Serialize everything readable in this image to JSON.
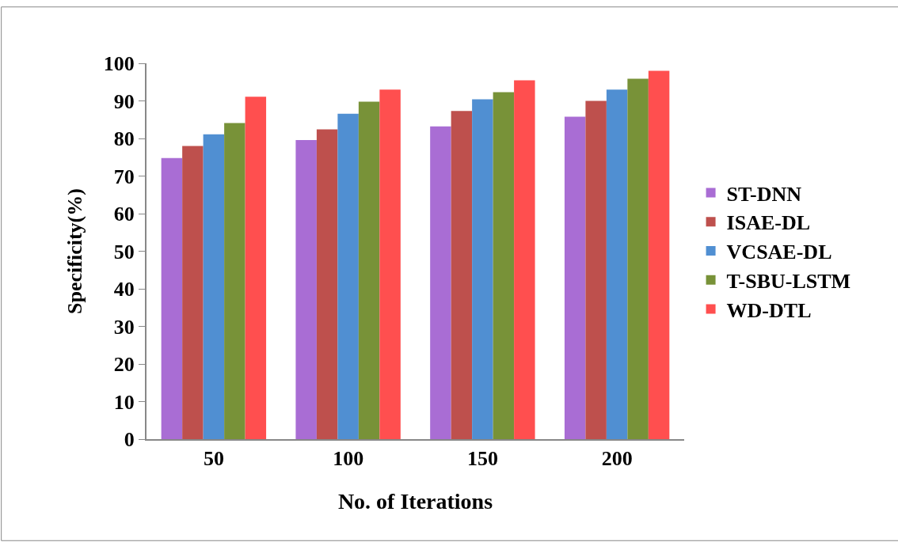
{
  "chart_data": {
    "type": "bar",
    "xlabel": "No. of Iterations",
    "ylabel": "Specificity(%)",
    "categories": [
      "50",
      "100",
      "150",
      "200"
    ],
    "series": [
      {
        "name": "ST-DNN",
        "color": "#a96dd4",
        "values": [
          74.8,
          79.6,
          83.2,
          85.8
        ]
      },
      {
        "name": "ISAE-DL",
        "color": "#be504d",
        "values": [
          78.0,
          82.4,
          87.3,
          90.0
        ]
      },
      {
        "name": "VCSAE-DL",
        "color": "#508fd2",
        "values": [
          81.1,
          86.6,
          90.4,
          93.0
        ]
      },
      {
        "name": "T-SBU-LSTM",
        "color": "#789238",
        "values": [
          84.1,
          89.8,
          92.3,
          95.9
        ]
      },
      {
        "name": "WD-DTL",
        "color": "#ff4f4f",
        "values": [
          91.1,
          93.0,
          95.5,
          98.0
        ]
      }
    ],
    "ylim": [
      0,
      100
    ],
    "yticks": [
      0,
      10,
      20,
      30,
      40,
      50,
      60,
      70,
      80,
      90,
      100
    ],
    "legend": "right"
  }
}
